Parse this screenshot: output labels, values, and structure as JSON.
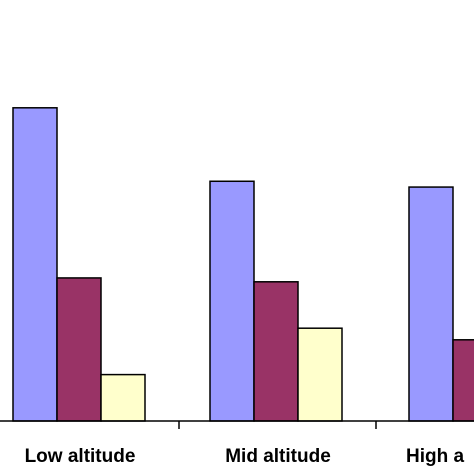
{
  "chart_data": {
    "type": "bar",
    "categories": [
      "Low altitude",
      "Mid altitude",
      "High a"
    ],
    "series": [
      {
        "values": [
          32.4,
          24.8,
          24.2
        ],
        "color": "#9999ff"
      },
      {
        "values": [
          14.8,
          14.4,
          8.4
        ],
        "color": "#993366"
      },
      {
        "values": [
          4.8,
          9.6,
          null
        ],
        "color": "#ffffcc"
      }
    ],
    "title": "",
    "xlabel": "",
    "ylabel": "",
    "ylim": [
      0,
      42
    ],
    "grid": false,
    "legend": "none"
  }
}
